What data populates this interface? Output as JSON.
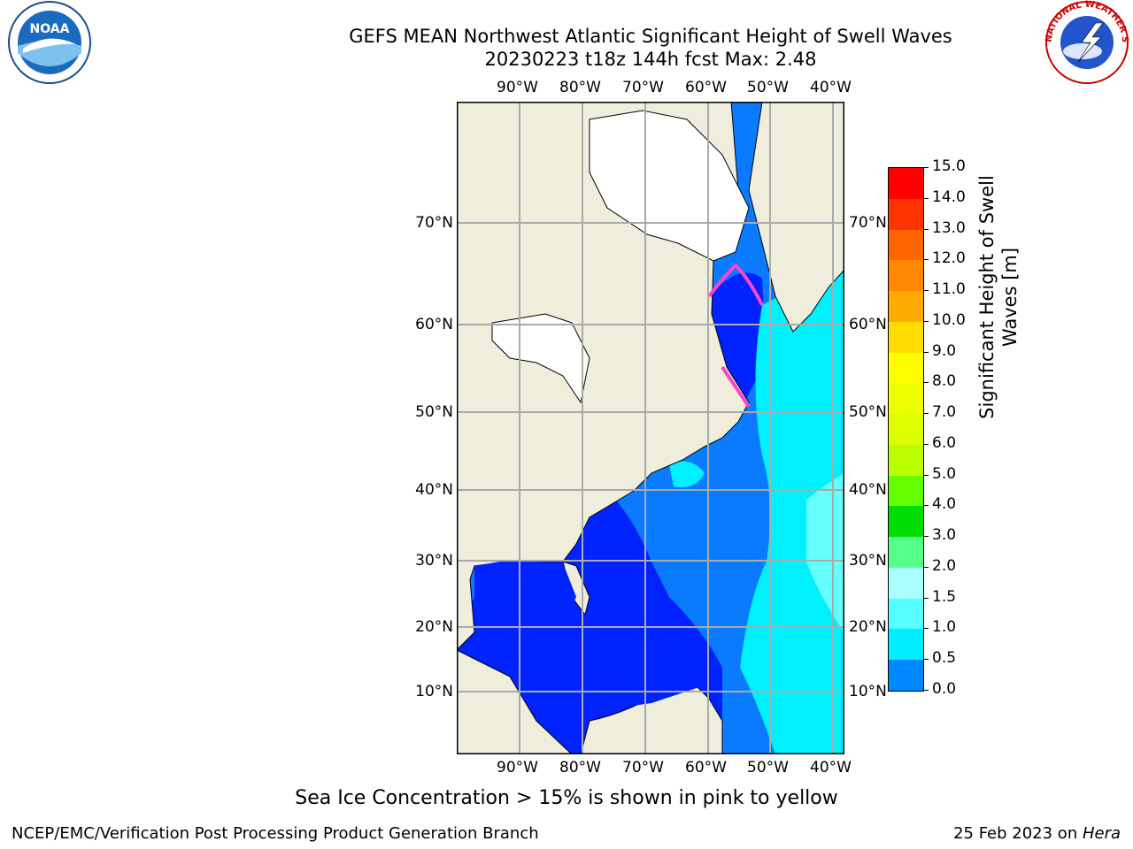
{
  "title": {
    "line1": "GEFS MEAN Northwest Atlantic Significant Height of Swell Waves",
    "line2": "20230223 t18z 144h fcst   Max: 2.48"
  },
  "logos": {
    "noaa_text": "NOAA",
    "nws_text": "NATIONAL WEATHER SERVICE"
  },
  "map": {
    "lon_labels": [
      "90°W",
      "80°W",
      "70°W",
      "60°W",
      "50°W",
      "40°W"
    ],
    "lat_labels": [
      "70°N",
      "60°N",
      "50°N",
      "40°N",
      "30°N",
      "20°N",
      "10°N"
    ],
    "colors": {
      "land": "#efeedc",
      "ice_free_land": "#ffffff",
      "grid": "#aaaaaa"
    }
  },
  "colorbar": {
    "label_line1": "Significant Height of Swell",
    "label_line2": "Waves [m]",
    "ticks": [
      "15.0",
      "14.0",
      "13.0",
      "12.0",
      "11.0",
      "10.0",
      "9.0",
      "8.0",
      "7.0",
      "6.0",
      "5.0",
      "4.0",
      "3.0",
      "2.0",
      "1.5",
      "1.0",
      "0.5",
      "0.0"
    ],
    "colors": [
      "#ff0000",
      "#ff3300",
      "#ff6600",
      "#ff8800",
      "#ffaa00",
      "#ffdd00",
      "#ffff00",
      "#eeff00",
      "#ddff00",
      "#bbff00",
      "#66ff00",
      "#00dd00",
      "#55ff88",
      "#aaffff",
      "#55ffff",
      "#00eeff",
      "#0088ff",
      "#0000ff"
    ]
  },
  "note": "Sea Ice Concentration > 15% is shown in pink to yellow",
  "footer": {
    "left": "NCEP/EMC/Verification Post Processing Product Generation Branch",
    "right_prefix": "25 Feb 2023 on ",
    "right_host": "Hera"
  }
}
